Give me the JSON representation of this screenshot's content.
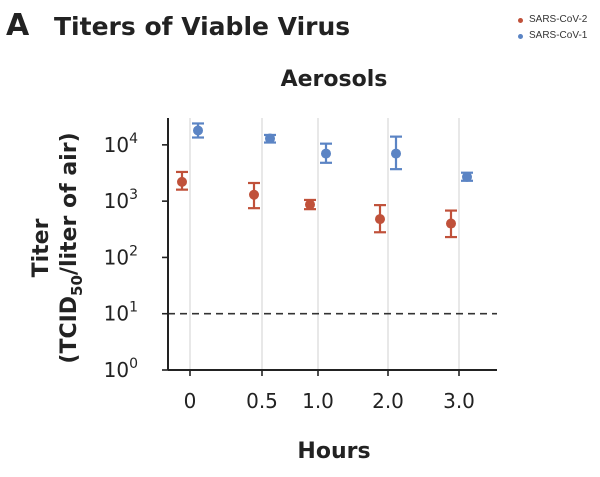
{
  "panel": {
    "letter": "A",
    "title": "Titers of Viable Virus"
  },
  "colors": {
    "sars2": "#c0513a",
    "sars1": "#5b84c4",
    "grid": "#d9d9d9",
    "axis": "#222222"
  },
  "chart_data": {
    "type": "scatter",
    "title": "Aerosols",
    "xlabel": "Hours",
    "ylabel_line1": "Titer",
    "ylabel_line2": "(TCID50/liter of air)",
    "ylabel_line2_parts": {
      "pre": "(TCID",
      "sub": "50",
      "post": "/liter of air)"
    },
    "y_scale": "log",
    "ylim": [
      1,
      30000
    ],
    "y_ticks": [
      {
        "value": 1,
        "base": "10",
        "exp": "0"
      },
      {
        "value": 10,
        "base": "10",
        "exp": "1"
      },
      {
        "value": 100,
        "base": "10",
        "exp": "2"
      },
      {
        "value": 1000,
        "base": "10",
        "exp": "3"
      },
      {
        "value": 10000,
        "base": "10",
        "exp": "4"
      }
    ],
    "categories": [
      "0",
      "0.5",
      "1.0",
      "2.0",
      "3.0"
    ],
    "detection_limit": 10,
    "grid": "vertical",
    "legend_position": "top-right",
    "series": [
      {
        "name": "SARS-CoV-2",
        "values": [
          2200,
          1300,
          870,
          480,
          400
        ],
        "err_low": [
          1600,
          750,
          720,
          280,
          230
        ],
        "err_high": [
          3300,
          2100,
          1050,
          850,
          680
        ]
      },
      {
        "name": "SARS-CoV-1",
        "values": [
          18000,
          13000,
          7000,
          7000,
          2700
        ],
        "err_low": [
          13500,
          11000,
          4800,
          3700,
          2300
        ],
        "err_high": [
          24000,
          15000,
          10500,
          14000,
          3200
        ]
      }
    ]
  }
}
